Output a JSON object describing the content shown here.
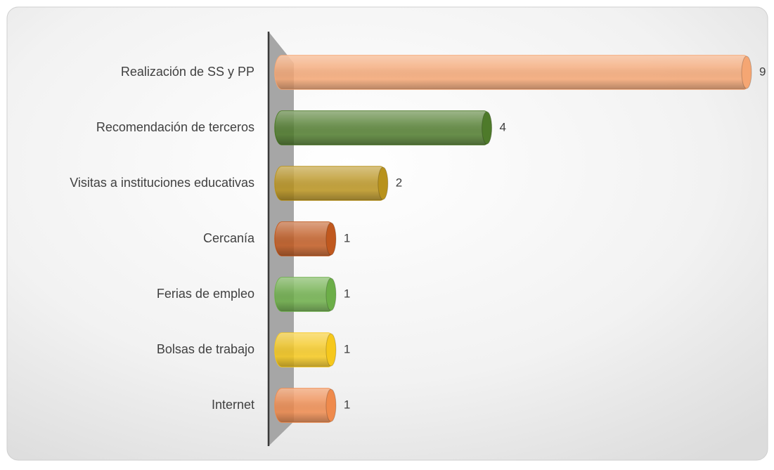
{
  "chart_data": {
    "type": "bar",
    "orientation": "horizontal",
    "categories": [
      "Realización de SS y PP",
      "Recomendación de terceros",
      "Visitas a instituciones educativas",
      "Cercanía",
      "Ferias de empleo",
      "Bolsas de trabajo",
      "Internet"
    ],
    "values": [
      9,
      4,
      2,
      1,
      1,
      1,
      1
    ],
    "colors": [
      "#f5a673",
      "#4e7a2a",
      "#b8921c",
      "#c0581e",
      "#6cae48",
      "#f6c81c",
      "#ef8a4c"
    ],
    "data_labels": true
  }
}
